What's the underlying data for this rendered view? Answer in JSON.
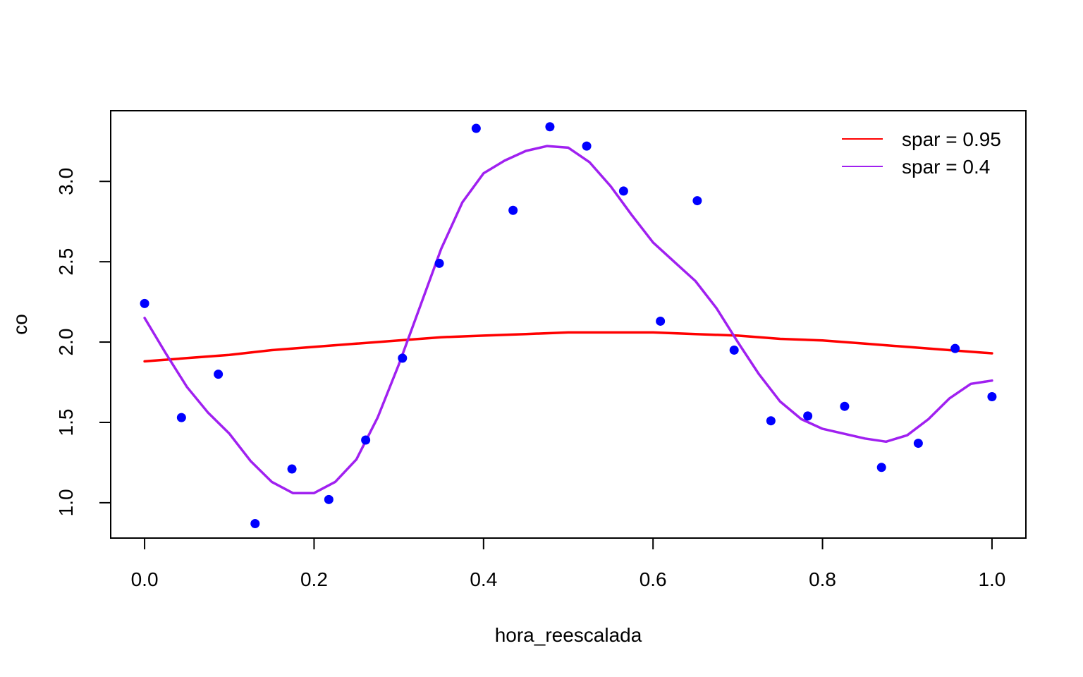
{
  "chart_data": {
    "type": "scatter",
    "title": "",
    "xlabel": "hora_reescalada",
    "ylabel": "co",
    "xlim": [
      -0.04,
      1.04
    ],
    "ylim": [
      0.78,
      3.44
    ],
    "xticks": [
      0.0,
      0.2,
      0.4,
      0.6,
      0.8,
      1.0
    ],
    "xtick_labels": [
      "0.0",
      "0.2",
      "0.4",
      "0.6",
      "0.8",
      "1.0"
    ],
    "yticks": [
      1.0,
      1.5,
      2.0,
      2.5,
      3.0
    ],
    "ytick_labels": [
      "1.0",
      "1.5",
      "2.0",
      "2.5",
      "3.0"
    ],
    "grid": false,
    "legend_position": "top-right",
    "points": {
      "color": "#0000ff",
      "x": [
        0.0,
        0.0435,
        0.087,
        0.1304,
        0.1739,
        0.2174,
        0.2609,
        0.3043,
        0.3478,
        0.3913,
        0.4348,
        0.4783,
        0.5217,
        0.5652,
        0.6087,
        0.6522,
        0.6957,
        0.7391,
        0.7826,
        0.8261,
        0.8696,
        0.913,
        0.9565,
        1.0
      ],
      "y": [
        2.24,
        1.53,
        1.8,
        0.87,
        1.21,
        1.02,
        1.39,
        1.9,
        2.49,
        3.33,
        2.82,
        3.34,
        3.22,
        2.94,
        2.13,
        2.88,
        1.95,
        1.51,
        1.54,
        1.6,
        1.22,
        1.37,
        1.96,
        1.66
      ]
    },
    "series": [
      {
        "name": "spar = 0.95",
        "color": "#ff0000",
        "x": [
          0.0,
          0.05,
          0.1,
          0.15,
          0.2,
          0.25,
          0.3,
          0.35,
          0.4,
          0.45,
          0.5,
          0.55,
          0.6,
          0.65,
          0.7,
          0.75,
          0.8,
          0.85,
          0.9,
          0.95,
          1.0
        ],
        "y": [
          1.88,
          1.9,
          1.92,
          1.95,
          1.97,
          1.99,
          2.01,
          2.03,
          2.04,
          2.05,
          2.06,
          2.06,
          2.06,
          2.05,
          2.04,
          2.02,
          2.01,
          1.99,
          1.97,
          1.95,
          1.93
        ]
      },
      {
        "name": "spar = 0.4",
        "color": "#a020f0",
        "x": [
          0.0,
          0.025,
          0.05,
          0.075,
          0.1,
          0.125,
          0.15,
          0.175,
          0.2,
          0.225,
          0.25,
          0.275,
          0.3,
          0.325,
          0.35,
          0.375,
          0.4,
          0.425,
          0.45,
          0.475,
          0.5,
          0.525,
          0.55,
          0.575,
          0.6,
          0.625,
          0.65,
          0.675,
          0.7,
          0.725,
          0.75,
          0.775,
          0.8,
          0.825,
          0.85,
          0.875,
          0.9,
          0.925,
          0.95,
          0.975,
          1.0
        ],
        "y": [
          2.15,
          1.93,
          1.72,
          1.56,
          1.43,
          1.26,
          1.13,
          1.06,
          1.06,
          1.13,
          1.27,
          1.53,
          1.86,
          2.22,
          2.58,
          2.87,
          3.05,
          3.13,
          3.19,
          3.22,
          3.21,
          3.12,
          2.97,
          2.79,
          2.62,
          2.5,
          2.38,
          2.21,
          2.0,
          1.8,
          1.63,
          1.52,
          1.46,
          1.43,
          1.4,
          1.38,
          1.42,
          1.52,
          1.65,
          1.74,
          1.76
        ]
      }
    ]
  }
}
